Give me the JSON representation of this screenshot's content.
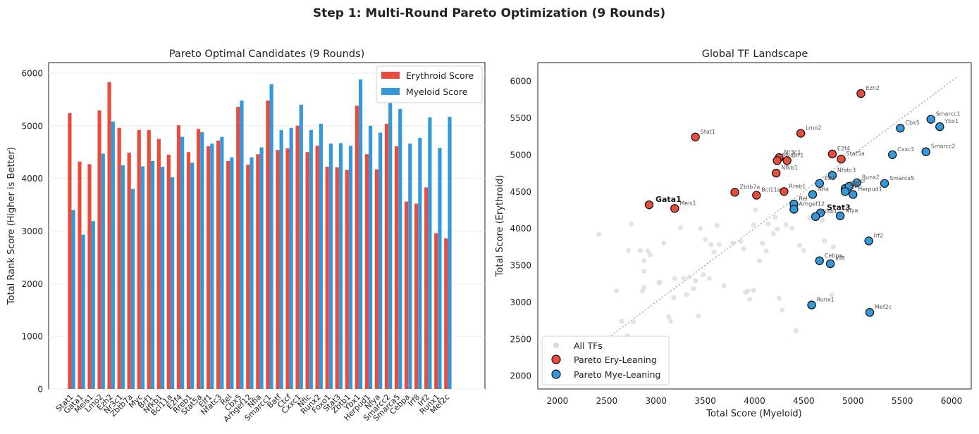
{
  "suptitle": "Step 1: Multi-Round Pareto Optimization (9 Rounds)",
  "colors": {
    "erythroid": "#e74c3c",
    "myeloid": "#3498db",
    "background_points": "#d9d9d9",
    "diagonal": "#aaaaaa"
  },
  "chart_data": [
    {
      "type": "bar",
      "title": "Pareto Optimal Candidates (9 Rounds)",
      "xlabel": "",
      "ylabel": "Total Rank Score (Higher is Better)",
      "ylim": [
        0,
        6200
      ],
      "yticks": [
        0,
        1000,
        2000,
        3000,
        4000,
        5000,
        6000
      ],
      "grid": "y",
      "legend_position": "top-right",
      "categories": [
        "Stat1",
        "Gata1",
        "Meis1",
        "Lmo2",
        "Ezh2",
        "Nr3c1",
        "Zbtb7a",
        "Myc",
        "Brf1",
        "Nfkb1",
        "Bcl11a",
        "E2f4",
        "Rreb1",
        "Stat5a",
        "Elf1",
        "Nfatc3",
        "Rel",
        "Cbx5",
        "Arhgef12",
        "Nfia",
        "Smarcc1",
        "Batf",
        "Ctcf",
        "Cxxc1",
        "Nfic",
        "Runx2",
        "Foxo1",
        "Stat3",
        "Zbtb1",
        "Ybx1",
        "Herpud1",
        "Nfya",
        "Smarcc2",
        "Smarca5",
        "Cebpa",
        "Irf8",
        "Irf2",
        "Runx1",
        "Mef2c"
      ],
      "series": [
        {
          "name": "Erythroid Score",
          "values": [
            5240,
            4320,
            4270,
            5290,
            5830,
            4960,
            4490,
            4920,
            4920,
            4750,
            4450,
            5010,
            4500,
            4940,
            4610,
            4720,
            4330,
            5360,
            4260,
            4460,
            5480,
            4540,
            4570,
            5000,
            4500,
            4620,
            4220,
            4210,
            4160,
            5380,
            4460,
            4170,
            5040,
            4610,
            3560,
            3520,
            3830,
            2960,
            2860
          ]
        },
        {
          "name": "Myeloid Score",
          "values": [
            3400,
            2930,
            3190,
            4470,
            5080,
            4250,
            3800,
            4230,
            4330,
            4220,
            4020,
            4790,
            4300,
            4880,
            4660,
            4790,
            4400,
            5480,
            4400,
            4590,
            5790,
            4920,
            4960,
            5400,
            4920,
            5040,
            4660,
            4670,
            4620,
            5880,
            5000,
            4870,
            5740,
            5320,
            4660,
            4770,
            5160,
            4580,
            5170
          ]
        }
      ]
    },
    {
      "type": "scatter",
      "title": "Global TF Landscape",
      "xlabel": "Total Score (Myeloid)",
      "ylabel": "Total Score (Erythroid)",
      "xlim": [
        1800,
        6200
      ],
      "ylim": [
        1820,
        6250
      ],
      "xticks": [
        2000,
        2500,
        3000,
        3500,
        4000,
        4500,
        5000,
        5500,
        6000
      ],
      "yticks": [
        2000,
        2500,
        3000,
        3500,
        4000,
        4500,
        5000,
        5500,
        6000
      ],
      "grid": false,
      "legend_position": "bottom-left",
      "legend": [
        "All TFs",
        "Pareto Ery-Leaning",
        "Pareto Mye-Leaning"
      ],
      "diagonal": [
        [
          2000,
          2000
        ],
        [
          6050,
          6050
        ]
      ],
      "background": [
        [
          2070,
          2200
        ],
        [
          2300,
          2350
        ],
        [
          2420,
          3920
        ],
        [
          2600,
          3150
        ],
        [
          2650,
          2740
        ],
        [
          2700,
          2480
        ],
        [
          2710,
          2540
        ],
        [
          2720,
          3700
        ],
        [
          2750,
          4060
        ],
        [
          2770,
          2730
        ],
        [
          2840,
          3700
        ],
        [
          2860,
          3150
        ],
        [
          2880,
          3200
        ],
        [
          2880,
          3420
        ],
        [
          2880,
          3560
        ],
        [
          2920,
          3690
        ],
        [
          2940,
          3640
        ],
        [
          3030,
          3260
        ],
        [
          3040,
          3270
        ],
        [
          3080,
          3800
        ],
        [
          3130,
          2800
        ],
        [
          3150,
          2740
        ],
        [
          3180,
          3060
        ],
        [
          3190,
          3320
        ],
        [
          3250,
          4010
        ],
        [
          3280,
          3320
        ],
        [
          3310,
          3100
        ],
        [
          3340,
          3340
        ],
        [
          3380,
          3180
        ],
        [
          3400,
          3290
        ],
        [
          3430,
          2810
        ],
        [
          3450,
          4000
        ],
        [
          3480,
          3370
        ],
        [
          3500,
          3850
        ],
        [
          3540,
          3320
        ],
        [
          3560,
          3780
        ],
        [
          3590,
          3680
        ],
        [
          3620,
          4040
        ],
        [
          3640,
          3780
        ],
        [
          3690,
          3220
        ],
        [
          3780,
          3800
        ],
        [
          3860,
          3820
        ],
        [
          3890,
          3720
        ],
        [
          3910,
          3130
        ],
        [
          3930,
          3150
        ],
        [
          3950,
          3040
        ],
        [
          3990,
          3160
        ],
        [
          3990,
          4050
        ],
        [
          4010,
          4250
        ],
        [
          4050,
          3560
        ],
        [
          4080,
          3800
        ],
        [
          4120,
          3690
        ],
        [
          4140,
          4060
        ],
        [
          4190,
          3930
        ],
        [
          4210,
          4150
        ],
        [
          4230,
          3990
        ],
        [
          4250,
          3050
        ],
        [
          4280,
          2890
        ],
        [
          4320,
          4050
        ],
        [
          4380,
          4000
        ],
        [
          4420,
          2610
        ],
        [
          4460,
          3770
        ],
        [
          4500,
          3700
        ],
        [
          4560,
          4140
        ],
        [
          4690,
          4110
        ],
        [
          4710,
          3830
        ],
        [
          4780,
          3100
        ],
        [
          4800,
          3750
        ]
      ],
      "ery_leaning": [
        {
          "label": "Stat1",
          "x": 3400,
          "y": 5240
        },
        {
          "label": "Gata1",
          "x": 2930,
          "y": 4320,
          "bold": true
        },
        {
          "label": "Meis1",
          "x": 3190,
          "y": 4270
        },
        {
          "label": "Lmo2",
          "x": 4470,
          "y": 5290
        },
        {
          "label": "Ezh2",
          "x": 5080,
          "y": 5830
        },
        {
          "label": "Nr3c1",
          "x": 4250,
          "y": 4960
        },
        {
          "label": "Myc",
          "x": 4230,
          "y": 4920
        },
        {
          "label": "Brf1",
          "x": 4330,
          "y": 4920
        },
        {
          "label": "Nfkb1",
          "x": 4220,
          "y": 4750
        },
        {
          "label": "Zbtb7a",
          "x": 3800,
          "y": 4490
        },
        {
          "label": "Bcl11a",
          "x": 4020,
          "y": 4450
        },
        {
          "label": "Rreb1",
          "x": 4300,
          "y": 4500
        },
        {
          "label": "E2f4",
          "x": 4790,
          "y": 5010
        },
        {
          "label": "Stat5a",
          "x": 4880,
          "y": 4940
        }
      ],
      "mye_leaning": [
        {
          "label": "Smarcc1",
          "x": 5790,
          "y": 5480
        },
        {
          "label": "Ybx1",
          "x": 5880,
          "y": 5380
        },
        {
          "label": "Cbx5",
          "x": 5480,
          "y": 5360
        },
        {
          "label": "Cxxc1",
          "x": 5400,
          "y": 5000
        },
        {
          "label": "Smarcc2",
          "x": 5740,
          "y": 5040
        },
        {
          "label": "Nfatc3",
          "x": 4790,
          "y": 4720
        },
        {
          "label": "Elf1",
          "x": 4660,
          "y": 4610
        },
        {
          "label": "Runx2",
          "x": 5040,
          "y": 4620
        },
        {
          "label": "Smarca5",
          "x": 5320,
          "y": 4610
        },
        {
          "label": "Batf",
          "x": 4920,
          "y": 4540
        },
        {
          "label": "Ctcf",
          "x": 4960,
          "y": 4570
        },
        {
          "label": "Herpud1",
          "x": 5000,
          "y": 4460
        },
        {
          "label": "Nfia",
          "x": 4590,
          "y": 4460
        },
        {
          "label": "Rel",
          "x": 4400,
          "y": 4330
        },
        {
          "label": "Arhgef12",
          "x": 4400,
          "y": 4260
        },
        {
          "label": "Stat3",
          "x": 4670,
          "y": 4210,
          "bold": true
        },
        {
          "label": "Zbtb1",
          "x": 4620,
          "y": 4160
        },
        {
          "label": "Nfic",
          "x": 4920,
          "y": 4500
        },
        {
          "label": "Nfya",
          "x": 4870,
          "y": 4170
        },
        {
          "label": "Irf2",
          "x": 5160,
          "y": 3830
        },
        {
          "label": "Cebpa",
          "x": 4660,
          "y": 3560
        },
        {
          "label": "Irf8",
          "x": 4770,
          "y": 3520
        },
        {
          "label": "Runx1",
          "x": 4580,
          "y": 2960
        },
        {
          "label": "Mef2c",
          "x": 5170,
          "y": 2860
        }
      ]
    }
  ]
}
